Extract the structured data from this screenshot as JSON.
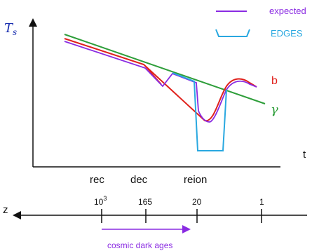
{
  "legend": {
    "expected": {
      "label": "expected",
      "color": "#8a2be2"
    },
    "edges": {
      "label": "EDGES",
      "color": "#29a8e0"
    }
  },
  "axes": {
    "y_label": "T",
    "y_label_sub": "s",
    "x_label": "t",
    "x_ticks": [
      "rec",
      "dec",
      "reion"
    ]
  },
  "curve_labels": {
    "b": {
      "label": "b",
      "color": "#e0201b"
    },
    "gamma": {
      "label": "γ",
      "color": "#2e9e3a"
    }
  },
  "z_axis": {
    "label": "z",
    "ticks": [
      {
        "base": "10",
        "exp": "3"
      },
      {
        "base": "165",
        "exp": ""
      },
      {
        "base": "20",
        "exp": ""
      },
      {
        "base": "1",
        "exp": ""
      }
    ]
  },
  "dark_ages": {
    "label": "cosmic dark ages",
    "color": "#8a2be2"
  }
}
